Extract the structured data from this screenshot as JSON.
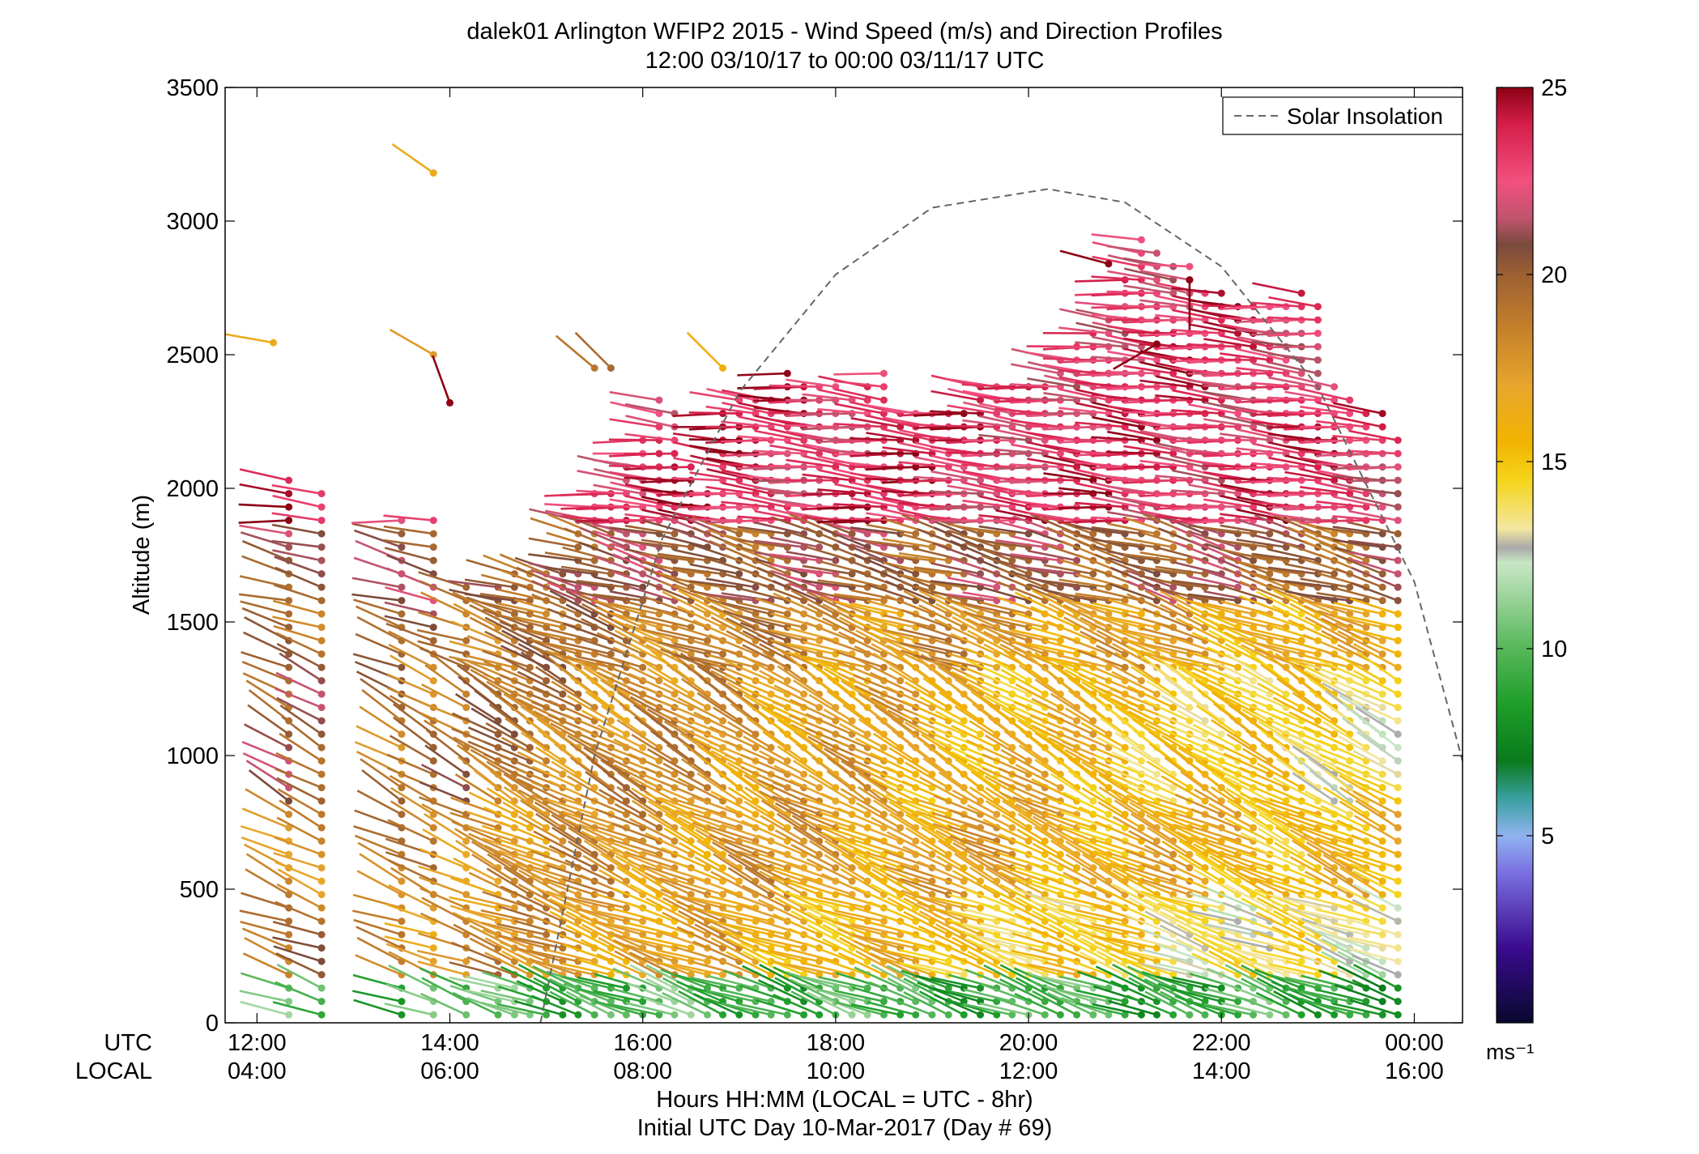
{
  "title": {
    "line1": "dalek01 Arlington WFIP2 2015 - Wind Speed (m/s) and Direction Profiles",
    "line2": "12:00 03/10/17 to 00:00 03/11/17  UTC"
  },
  "labels": {
    "utc_row": "UTC",
    "local_row": "LOCAL",
    "xlabel": "Hours HH:MM  (LOCAL = UTC - 8hr)",
    "day_label": "Initial UTC Day 10-Mar-2017 (Day # 69)",
    "colorbar_units": "ms⁻¹"
  },
  "chart_data": {
    "type": "wind-barb profile (colored by speed)",
    "xlim_hours_utc": [
      11.67,
      24.5
    ],
    "ylim": [
      0,
      3500
    ],
    "ylabel": "Altitude (m)",
    "y_ticks": [
      {
        "value": 0,
        "label": "0"
      },
      {
        "value": 500,
        "label": "500"
      },
      {
        "value": 1000,
        "label": "1000"
      },
      {
        "value": 1500,
        "label": "1500"
      },
      {
        "value": 2000,
        "label": "2000"
      },
      {
        "value": 2500,
        "label": "2500"
      },
      {
        "value": 3000,
        "label": "3000"
      },
      {
        "value": 3500,
        "label": "3500"
      }
    ],
    "x_ticks": [
      {
        "hour": 12,
        "utc": "12:00",
        "local": "04:00"
      },
      {
        "hour": 14,
        "utc": "14:00",
        "local": "06:00"
      },
      {
        "hour": 16,
        "utc": "16:00",
        "local": "08:00"
      },
      {
        "hour": 18,
        "utc": "18:00",
        "local": "10:00"
      },
      {
        "hour": 20,
        "utc": "20:00",
        "local": "12:00"
      },
      {
        "hour": 22,
        "utc": "22:00",
        "local": "14:00"
      },
      {
        "hour": 24,
        "utc": "00:00",
        "local": "16:00"
      }
    ],
    "legend": {
      "label": "Solar Insolation",
      "location": "top-right"
    },
    "solar_insolation": {
      "style": "dashed",
      "points": [
        [
          14.94,
          0
        ],
        [
          15.5,
          1000
        ],
        [
          16.2,
          1810
        ],
        [
          17.0,
          2360
        ],
        [
          18.0,
          2800
        ],
        [
          19.0,
          3050
        ],
        [
          20.2,
          3120
        ],
        [
          21.0,
          3070
        ],
        [
          22.0,
          2830
        ],
        [
          23.0,
          2380
        ],
        [
          24.0,
          1650
        ],
        [
          24.5,
          980
        ]
      ]
    },
    "colorbar": {
      "range": [
        0,
        25
      ],
      "ticks": [
        5,
        10,
        15,
        20,
        25
      ],
      "stops": [
        {
          "value": 0,
          "color": "#08082e"
        },
        {
          "value": 2,
          "color": "#3b0b8f"
        },
        {
          "value": 4,
          "color": "#7a6fe0"
        },
        {
          "value": 5,
          "color": "#8fb3f0"
        },
        {
          "value": 6,
          "color": "#3a9f9f"
        },
        {
          "value": 7,
          "color": "#0a7a1c"
        },
        {
          "value": 8.5,
          "color": "#1e9e2a"
        },
        {
          "value": 10,
          "color": "#56b75a"
        },
        {
          "value": 11.5,
          "color": "#a2d6a0"
        },
        {
          "value": 12.3,
          "color": "#c8e6c4"
        },
        {
          "value": 12.7,
          "color": "#a9a9a9"
        },
        {
          "value": 13.2,
          "color": "#f3e6a0"
        },
        {
          "value": 14.5,
          "color": "#f5d51a"
        },
        {
          "value": 15.5,
          "color": "#f2b400"
        },
        {
          "value": 17,
          "color": "#e8a62c"
        },
        {
          "value": 18.5,
          "color": "#c7812a"
        },
        {
          "value": 20,
          "color": "#9c6033"
        },
        {
          "value": 20.8,
          "color": "#7a4a3c"
        },
        {
          "value": 21.5,
          "color": "#c0546e"
        },
        {
          "value": 22.5,
          "color": "#f2507f"
        },
        {
          "value": 24,
          "color": "#d61f4a"
        },
        {
          "value": 25,
          "color": "#8c0014"
        }
      ]
    },
    "profile_times_utc": [
      12.33,
      12.67,
      13.5,
      13.83,
      14.17,
      14.5,
      14.67,
      14.83,
      15.0,
      15.17,
      15.33,
      15.5,
      15.67,
      15.83,
      16.0,
      16.17,
      16.33,
      16.5,
      16.67,
      16.83,
      17.0,
      17.17,
      17.33,
      17.5,
      17.67,
      17.83,
      18.0,
      18.17,
      18.33,
      18.5,
      18.67,
      18.83,
      19.0,
      19.17,
      19.33,
      19.5,
      19.67,
      19.83,
      20.0,
      20.17,
      20.33,
      20.5,
      20.67,
      20.83,
      21.0,
      21.17,
      21.33,
      21.5,
      21.67,
      21.83,
      22.0,
      22.17,
      22.33,
      22.5,
      22.67,
      22.83,
      23.0,
      23.17,
      23.33,
      23.5,
      23.67,
      23.83
    ],
    "profile_tops_m": [
      2050,
      1980,
      1910,
      1900,
      1650,
      1650,
      1690,
      1700,
      1700,
      1680,
      1920,
      2000,
      2000,
      2100,
      2200,
      2340,
      2320,
      2080,
      2010,
      2320,
      2350,
      2330,
      2350,
      2430,
      2390,
      2380,
      2420,
      2330,
      2410,
      2460,
      2300,
      2300,
      2300,
      2300,
      2300,
      2400,
      2390,
      2400,
      2380,
      2420,
      2500,
      2550,
      2590,
      2640,
      2800,
      2930,
      2900,
      2860,
      2840,
      2750,
      2740,
      2720,
      2700,
      2700,
      2720,
      2760,
      2700,
      2400,
      2350,
      2300,
      2280,
      2200
    ],
    "gap_times_utc": [
      12.95,
      13.35,
      14.05
    ],
    "isolated_barbs": [
      {
        "t": 12.17,
        "z": 2545,
        "speed": 16.5,
        "dir": 260
      },
      {
        "t": 13.83,
        "z": 3180,
        "speed": 16.5,
        "dir": 235
      },
      {
        "t": 13.83,
        "z": 2500,
        "speed": 17.5,
        "dir": 240
      },
      {
        "t": 14.0,
        "z": 2320,
        "speed": 25,
        "dir": 200
      },
      {
        "t": 15.5,
        "z": 2450,
        "speed": 19,
        "dir": 230
      },
      {
        "t": 15.67,
        "z": 2450,
        "speed": 19.5,
        "dir": 225
      },
      {
        "t": 16.83,
        "z": 2450,
        "speed": 16,
        "dir": 225
      },
      {
        "t": 20.83,
        "z": 2840,
        "speed": 25,
        "dir": 255
      },
      {
        "t": 21.33,
        "z": 2540,
        "speed": 25,
        "dir": 300
      },
      {
        "t": 21.67,
        "z": 2780,
        "speed": 25,
        "dir": 0
      }
    ],
    "wind_layers": [
      {
        "z_top": 150,
        "speed_early": 10,
        "speed_late": 9,
        "dir": 250
      },
      {
        "z_top": 450,
        "speed_early": 19,
        "speed_late": 13,
        "dir": 250
      },
      {
        "z_top": 800,
        "speed_early": 18.5,
        "speed_late": 15.5,
        "dir": 245
      },
      {
        "z_top": 1300,
        "speed_early": 20,
        "speed_late": 14,
        "dir": 240
      },
      {
        "z_top": 1550,
        "speed_early": 20,
        "speed_late": 16,
        "dir": 250
      },
      {
        "z_top": 1850,
        "speed_early": 20.5,
        "speed_late": 20,
        "dir": 255
      },
      {
        "z_top": 3500,
        "speed_early": 23.5,
        "speed_late": 23,
        "dir": 265
      }
    ]
  }
}
